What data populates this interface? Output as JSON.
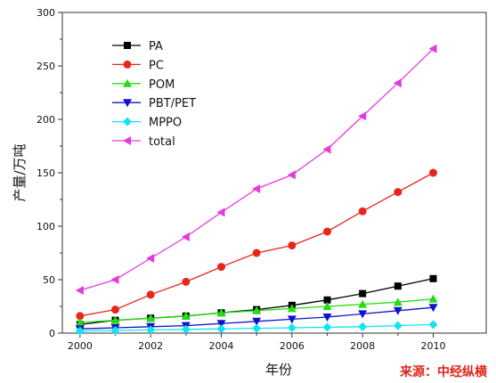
{
  "chart_data": {
    "type": "line",
    "xlabel": "年份",
    "ylabel": "产量/万吨",
    "source_note": "来源：中经纵横",
    "xlim": [
      1999.5,
      2011.5
    ],
    "ylim": [
      0,
      300
    ],
    "xticks": [
      2000,
      2002,
      2004,
      2006,
      2008,
      2010
    ],
    "yticks": [
      0,
      50,
      100,
      150,
      200,
      250,
      300
    ],
    "legend_position": "top-left",
    "grid": false,
    "x": [
      2000,
      2001,
      2002,
      2003,
      2004,
      2005,
      2006,
      2007,
      2008,
      2009,
      2010
    ],
    "series": [
      {
        "name": "PA",
        "color": "#000000",
        "marker": "square",
        "values": [
          8,
          12,
          14,
          16,
          19,
          22,
          26,
          31,
          37,
          44,
          51
        ]
      },
      {
        "name": "PC",
        "color": "#e8261c",
        "marker": "circle",
        "values": [
          16,
          22,
          36,
          48,
          62,
          75,
          82,
          95,
          114,
          132,
          150
        ]
      },
      {
        "name": "POM",
        "color": "#22dd11",
        "marker": "triangle-up",
        "values": [
          10,
          12,
          14,
          16,
          19,
          21,
          23,
          25,
          27,
          29,
          32
        ]
      },
      {
        "name": "PBT/PET",
        "color": "#1111cc",
        "marker": "triangle-down",
        "values": [
          4,
          5,
          6,
          7,
          9,
          11,
          13,
          15,
          18,
          21,
          24
        ]
      },
      {
        "name": "MPPO",
        "color": "#11e5f0",
        "marker": "diamond",
        "values": [
          2,
          2.5,
          3,
          3.5,
          4,
          4.5,
          5,
          5.5,
          6,
          7,
          8
        ]
      },
      {
        "name": "total",
        "color": "#e43bdd",
        "marker": "triangle-left",
        "values": [
          40,
          50,
          70,
          90,
          113,
          135,
          148,
          172,
          203,
          234,
          266
        ]
      }
    ]
  }
}
